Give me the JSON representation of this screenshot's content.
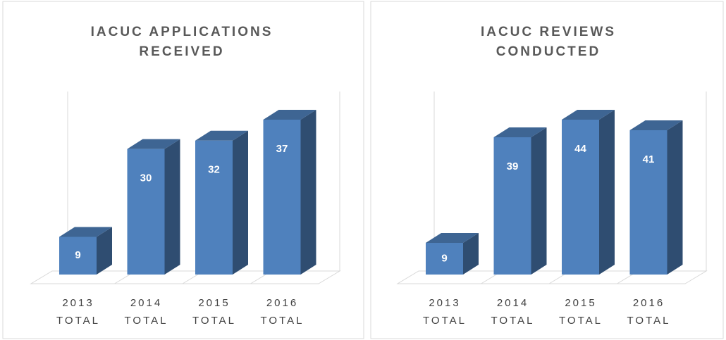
{
  "chart_data": [
    {
      "type": "bar3d",
      "title": "IACUC APPLICATIONS RECEIVED",
      "categories": [
        "2013 TOTAL",
        "2014 TOTAL",
        "2015 TOTAL",
        "2016 TOTAL"
      ],
      "values": [
        9,
        30,
        32,
        37
      ],
      "color": "#4f81bd"
    },
    {
      "type": "bar3d",
      "title": "IACUC REVIEWS CONDUCTED",
      "categories": [
        "2013 TOTAL",
        "2014 TOTAL",
        "2015 TOTAL",
        "2016 TOTAL"
      ],
      "values": [
        9,
        39,
        44,
        41
      ],
      "color": "#4f81bd"
    }
  ]
}
